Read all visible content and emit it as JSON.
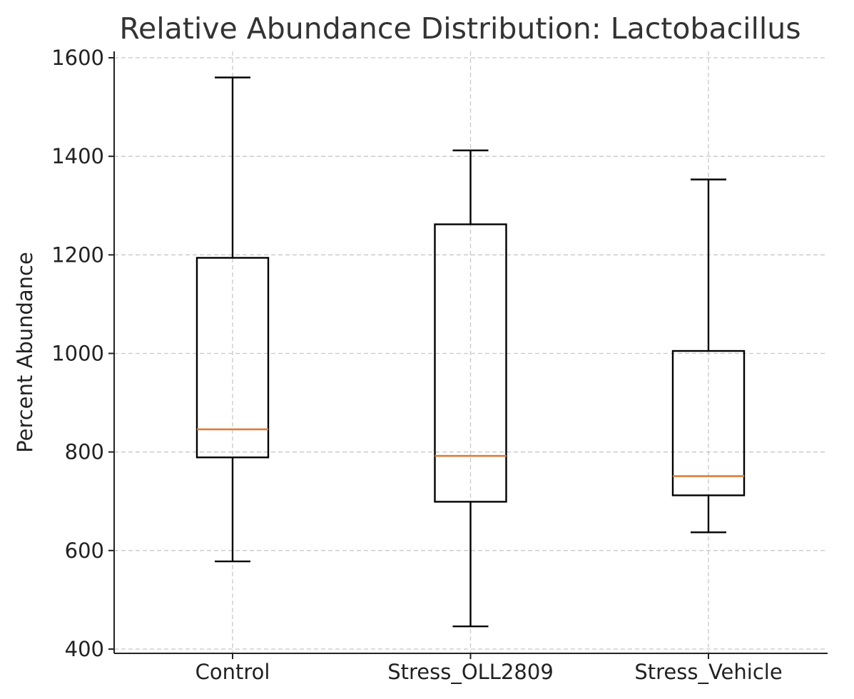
{
  "chart_data": {
    "type": "box",
    "title": "Relative Abundance Distribution: Lactobacillus",
    "xlabel": "",
    "ylabel": "Percent Abundance",
    "ylim": [
      390,
      1620
    ],
    "yticks": [
      400,
      600,
      800,
      1000,
      1200,
      1400,
      1600
    ],
    "grid": true,
    "categories": [
      "Control",
      "Stress_OLL2809",
      "Stress_Vehicle"
    ],
    "boxes": [
      {
        "category": "Control",
        "whisker_low": 578,
        "q1": 789,
        "median": 846,
        "q3": 1194,
        "whisker_high": 1560
      },
      {
        "category": "Stress_OLL2809",
        "whisker_low": 446,
        "q1": 699,
        "median": 792,
        "q3": 1262,
        "whisker_high": 1412
      },
      {
        "category": "Stress_Vehicle",
        "whisker_low": 637,
        "q1": 712,
        "median": 751,
        "q3": 1005,
        "whisker_high": 1353
      }
    ],
    "colors": {
      "median": "#e07b39",
      "box": "#000000",
      "grid": "#c8c8c8"
    }
  }
}
